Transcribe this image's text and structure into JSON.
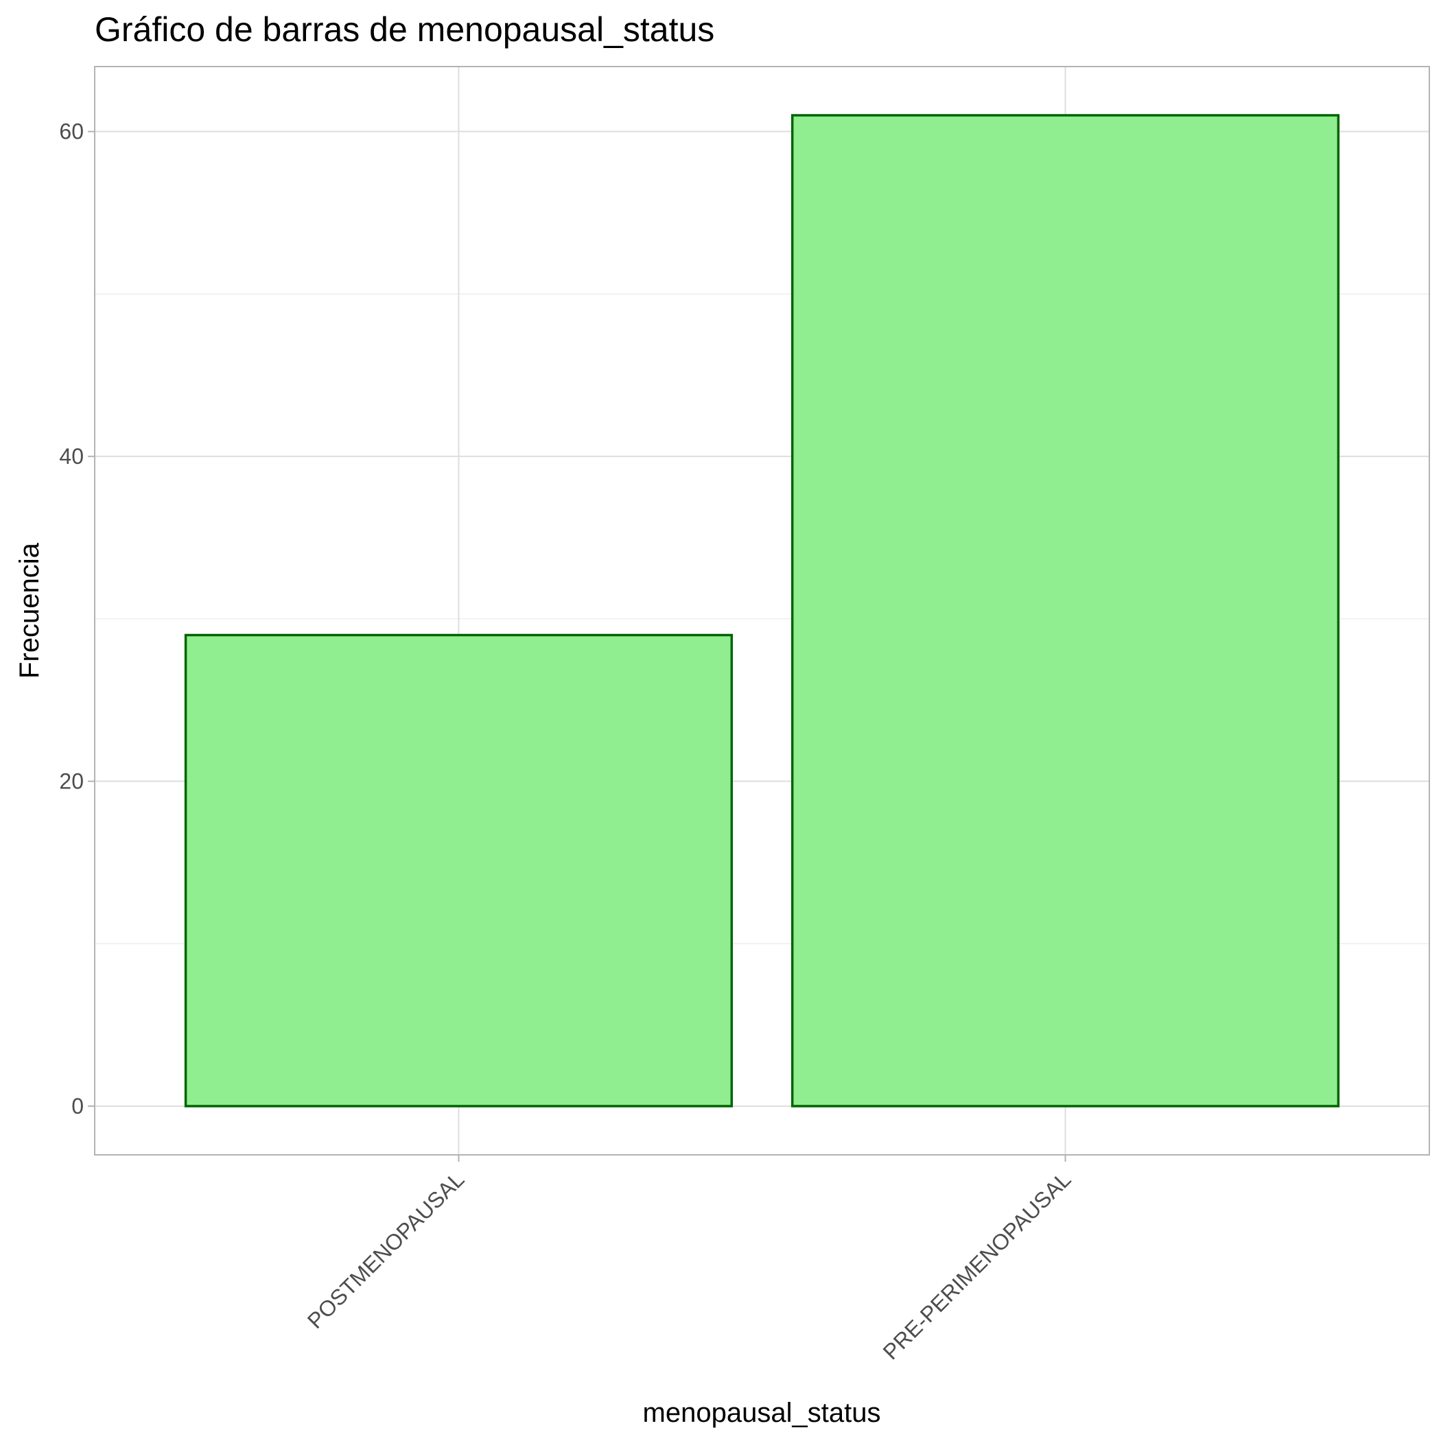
{
  "chart_data": {
    "type": "bar",
    "title": "Gráfico de barras de menopausal_status",
    "xlabel": "menopausal_status",
    "ylabel": "Frecuencia",
    "categories": [
      "POSTMENOPAUSAL",
      "PRE-PERIMENOPAUSAL"
    ],
    "values": [
      29,
      61
    ],
    "yticks": [
      0,
      20,
      40,
      60
    ],
    "ylim": [
      -3,
      64
    ],
    "grid": true,
    "colors": {
      "fill": "#90EE90",
      "outline": "#006400"
    }
  }
}
